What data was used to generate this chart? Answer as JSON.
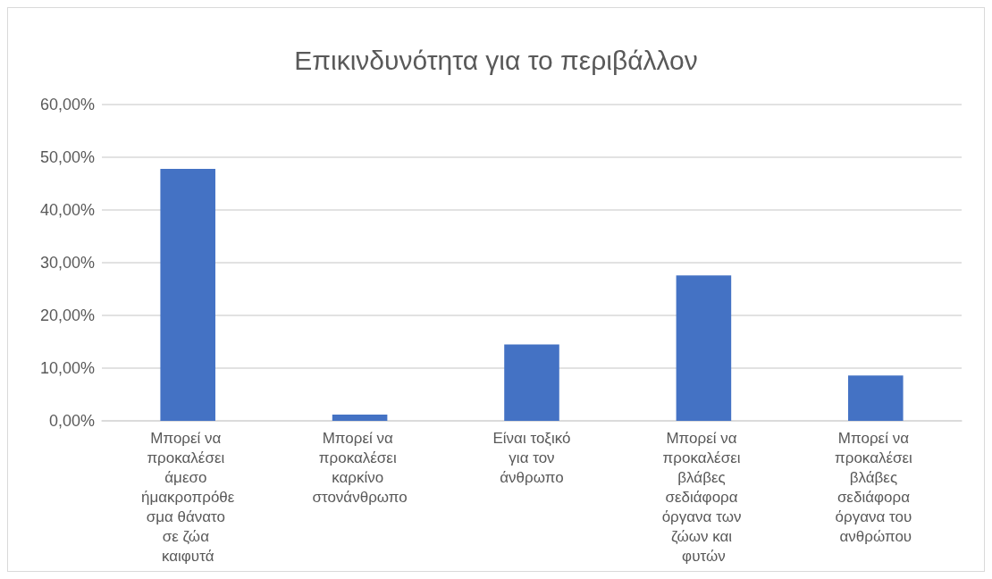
{
  "chart_data": {
    "type": "bar",
    "title": "Επικινδυνότητα για το περιβάλλον",
    "categories": [
      "Μπορεί να προκαλέσει άμεσο ήμακροπρόθεσμα θάνατο σε ζώα καιφυτά",
      "Μπορεί να προκαλέσει καρκίνο στονάνθρωπο",
      "Είναι τοξικό για τον άνθρωπο",
      "Μπορεί να προκαλέσει βλάβες σεδιάφορα όργανα των ζώων και φυτών",
      "Μπορεί να προκαλέσει βλάβες σεδιάφορα όργανα του ανθρώπου"
    ],
    "values": [
      47.8,
      1.2,
      14.5,
      27.6,
      8.6
    ],
    "color": "#4472c4",
    "ylim": [
      0,
      60
    ],
    "yticks": [
      {
        "value": 0,
        "label": "0,00%"
      },
      {
        "value": 10,
        "label": "10,00%"
      },
      {
        "value": 20,
        "label": "20,00%"
      },
      {
        "value": 30,
        "label": "30,00%"
      },
      {
        "value": 40,
        "label": "40,00%"
      },
      {
        "value": 50,
        "label": "50,00%"
      },
      {
        "value": 60,
        "label": "60,00%"
      }
    ],
    "grid": "y"
  }
}
